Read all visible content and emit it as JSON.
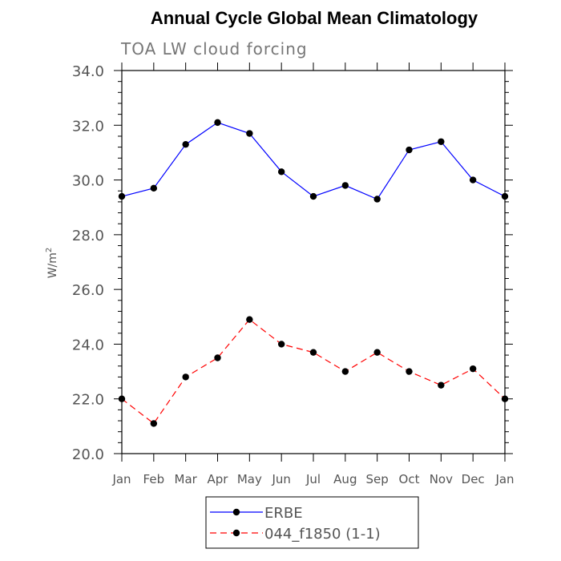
{
  "chart_data": {
    "type": "line",
    "title": "Annual Cycle Global Mean Climatology",
    "subtitle": "TOA LW cloud forcing",
    "ylabel": "W/m",
    "ylabel_sup": "2",
    "ylim": [
      20,
      34
    ],
    "yticks": [
      "20.0",
      "22.0",
      "24.0",
      "26.0",
      "28.0",
      "30.0",
      "32.0",
      "34.0"
    ],
    "yminor_step": 0.4,
    "categories": [
      "Jan",
      "Feb",
      "Mar",
      "Apr",
      "May",
      "Jun",
      "Jul",
      "Aug",
      "Sep",
      "Oct",
      "Nov",
      "Dec",
      "Jan"
    ],
    "series": [
      {
        "name": "ERBE",
        "color": "#0000ff",
        "dash": "solid",
        "values": [
          29.4,
          29.7,
          31.3,
          32.1,
          31.7,
          30.3,
          29.4,
          29.8,
          29.3,
          31.1,
          31.4,
          30.0,
          29.4
        ]
      },
      {
        "name": "044_f1850 (1-1)",
        "color": "#ff0000",
        "dash": "dashed",
        "values": [
          22.0,
          21.1,
          22.8,
          23.5,
          24.9,
          24.0,
          23.7,
          23.0,
          23.7,
          23.0,
          22.5,
          23.1,
          22.0
        ]
      }
    ],
    "grid": false,
    "legend_position": "bottom-center"
  }
}
